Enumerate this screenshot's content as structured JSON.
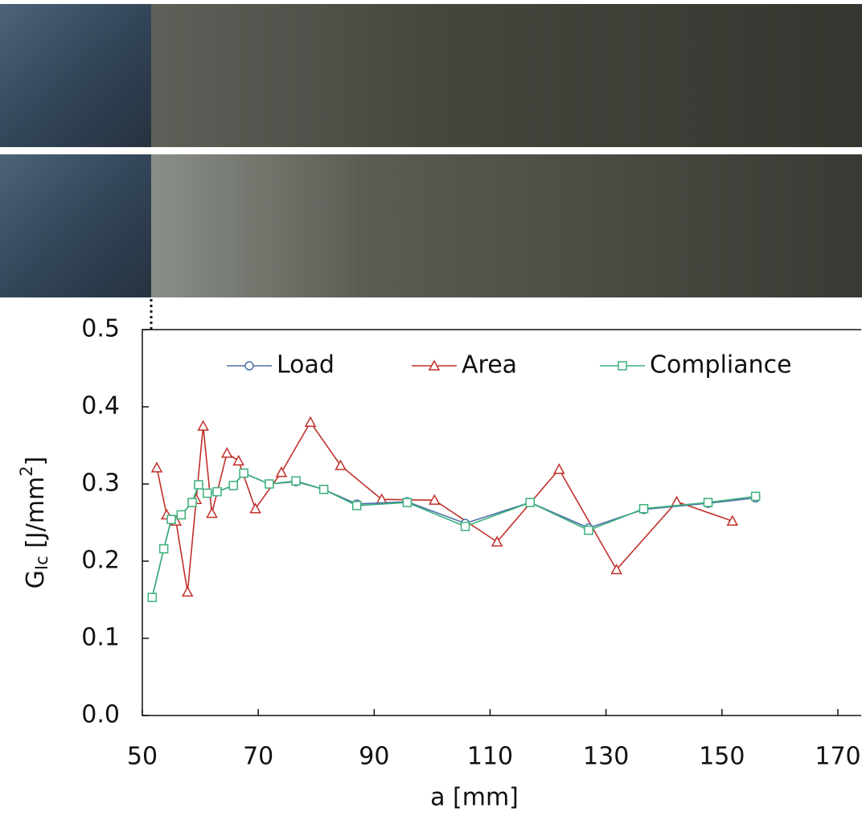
{
  "chart_data": {
    "type": "line",
    "xlabel": "a [mm]",
    "ylabel": [
      "G",
      "Ic",
      " [J/mm",
      "2",
      "]"
    ],
    "xlim": [
      50,
      170
    ],
    "xticks": [
      50,
      70,
      90,
      110,
      130,
      150,
      170
    ],
    "ylim": [
      0,
      0.5
    ],
    "yticks": [
      {
        "value": 0,
        "label": "0.0"
      },
      0.1,
      0.2,
      0.3,
      0.4,
      0.5
    ],
    "legend": "top",
    "series": [
      {
        "name": "Load",
        "color": "#4a6fa5",
        "marker": "circle",
        "x": [
          51.7,
          53.7,
          55,
          56.7,
          58.6,
          59.7,
          61.2,
          62.9,
          65.7,
          67.5,
          71.9,
          76.5,
          81.3,
          87,
          95.7,
          105.7,
          116.9,
          127,
          136.5,
          147.6,
          155.8
        ],
        "values": [
          0.153,
          0.216,
          0.254,
          0.26,
          0.276,
          0.299,
          0.288,
          0.29,
          0.298,
          0.314,
          0.3,
          0.303,
          0.293,
          0.274,
          0.277,
          0.249,
          0.276,
          0.243,
          0.267,
          0.275,
          0.282
        ]
      },
      {
        "name": "Area",
        "color": "#c0302a",
        "marker": "triangle",
        "x": [
          52.5,
          54.2,
          55.8,
          57.8,
          59.3,
          60.5,
          62,
          64.6,
          66.6,
          69.5,
          74,
          79,
          84.2,
          91.3,
          100.4,
          111.2,
          121.9,
          131.8,
          142.2,
          151.8
        ],
        "values": [
          0.321,
          0.26,
          0.252,
          0.16,
          0.28,
          0.375,
          0.262,
          0.34,
          0.33,
          0.268,
          0.315,
          0.38,
          0.324,
          0.28,
          0.279,
          0.225,
          0.319,
          0.189,
          0.277,
          0.252
        ]
      },
      {
        "name": "Compliance",
        "color": "#3cb07a",
        "marker": "square",
        "x": [
          51.7,
          53.7,
          55,
          56.7,
          58.6,
          59.7,
          61.2,
          62.9,
          65.7,
          67.5,
          71.9,
          76.5,
          81.3,
          87,
          95.7,
          105.7,
          116.9,
          127,
          136.5,
          147.6,
          155.8
        ],
        "values": [
          0.153,
          0.216,
          0.254,
          0.26,
          0.276,
          0.299,
          0.288,
          0.29,
          0.298,
          0.314,
          0.3,
          0.304,
          0.293,
          0.272,
          0.276,
          0.245,
          0.276,
          0.24,
          0.268,
          0.276,
          0.284
        ]
      }
    ]
  }
}
